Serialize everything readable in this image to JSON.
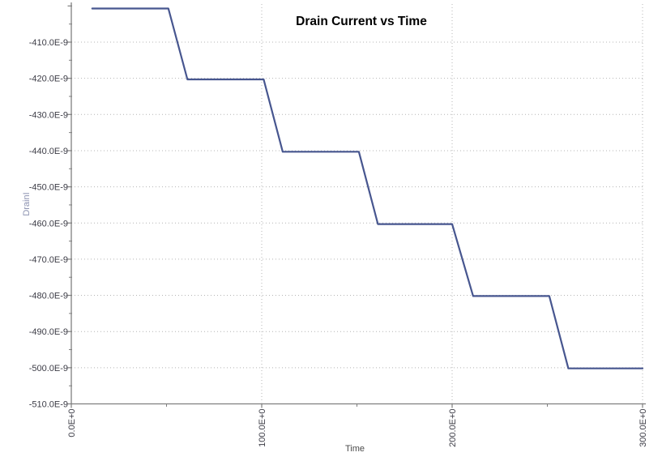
{
  "window": {
    "background_color": "#ffffff"
  },
  "chart_data": {
    "type": "line",
    "title": "Drain Current vs Time",
    "xlabel": "Time",
    "ylabel": "DrainI",
    "xlim": [
      0,
      300
    ],
    "ylim_e9": [
      -510,
      -400
    ],
    "grid": {
      "style": "dotted",
      "horizontal_at_e9": [
        -410,
        -420,
        -430,
        -440,
        -450,
        -460,
        -470,
        -480,
        -490,
        -500
      ],
      "vertical_at": [
        100,
        200,
        300
      ]
    },
    "legend": {
      "visible": false
    },
    "x_axis": {
      "major_ticks": [
        {
          "value": 0,
          "label": "0.0E+0"
        },
        {
          "value": 100,
          "label": "100.0E+0"
        },
        {
          "value": 200,
          "label": "200.0E+0"
        },
        {
          "value": 300,
          "label": "300.0E+0"
        }
      ],
      "minor_ticks": [
        50,
        150,
        250
      ],
      "tick_label_rotation_deg": -90
    },
    "y_axis": {
      "major_ticks": [
        {
          "value": -400,
          "label": ""
        },
        {
          "value": -410,
          "label": "-410.0E-9"
        },
        {
          "value": -420,
          "label": "-420.0E-9"
        },
        {
          "value": -430,
          "label": "-430.0E-9"
        },
        {
          "value": -440,
          "label": "-440.0E-9"
        },
        {
          "value": -450,
          "label": "-450.0E-9"
        },
        {
          "value": -460,
          "label": "-460.0E-9"
        },
        {
          "value": -470,
          "label": "-470.0E-9"
        },
        {
          "value": -480,
          "label": "-480.0E-9"
        },
        {
          "value": -490,
          "label": "-490.0E-9"
        },
        {
          "value": -500,
          "label": "-500.0E-9"
        },
        {
          "value": -510,
          "label": "-510.0E-9"
        }
      ],
      "minor_ticks": [
        -405,
        -415,
        -425,
        -435,
        -445,
        -455,
        -465,
        -475,
        -485,
        -495,
        -505
      ]
    },
    "series": [
      {
        "name": "DrainI",
        "color": "#47568f",
        "points_time_value_e9": [
          [
            11,
            -400.7
          ],
          [
            51,
            -400.7
          ],
          [
            61,
            -420.3
          ],
          [
            101,
            -420.3
          ],
          [
            111,
            -440.3
          ],
          [
            151,
            -440.3
          ],
          [
            161,
            -460.3
          ],
          [
            200,
            -460.3
          ],
          [
            211,
            -480.2
          ],
          [
            251,
            -480.2
          ],
          [
            261,
            -500.2
          ],
          [
            300,
            -500.2
          ]
        ]
      }
    ],
    "colors": {
      "series_line": "#47568f",
      "grid": "#b4b4b4",
      "axis": "#7f7f7f",
      "tick_label": "#3c3c46",
      "title": "#000000",
      "xlabel": "#4b4b4b",
      "ylabel": "#8d93b1"
    }
  }
}
